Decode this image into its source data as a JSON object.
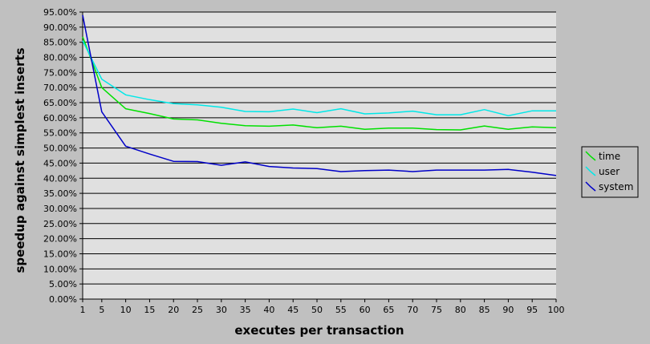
{
  "chart_data": {
    "type": "line",
    "title": "",
    "xlabel": "executes per transaction",
    "ylabel": "speedup against simplest inserts",
    "x": [
      1,
      5,
      10,
      15,
      20,
      25,
      30,
      35,
      40,
      45,
      50,
      55,
      60,
      65,
      70,
      75,
      80,
      85,
      90,
      95,
      100
    ],
    "xticks": [
      "1",
      "5",
      "10",
      "15",
      "20",
      "25",
      "30",
      "35",
      "40",
      "45",
      "50",
      "55",
      "60",
      "65",
      "70",
      "75",
      "80",
      "85",
      "90",
      "95",
      "100"
    ],
    "ylim": [
      0,
      0.95
    ],
    "yticks": [
      "0.00%",
      "5.00%",
      "10.00%",
      "15.00%",
      "20.00%",
      "25.00%",
      "30.00%",
      "35.00%",
      "40.00%",
      "45.00%",
      "50.00%",
      "55.00%",
      "60.00%",
      "65.00%",
      "70.00%",
      "75.00%",
      "80.00%",
      "85.00%",
      "90.00%",
      "95.00%"
    ],
    "grid": true,
    "legend_position": "right",
    "plot_background": "#e0e0e0",
    "background": "#c0c0c0",
    "series": [
      {
        "name": "time",
        "color": "#00e000",
        "values": [
          0.868,
          0.7,
          0.63,
          0.614,
          0.596,
          0.593,
          0.582,
          0.574,
          0.572,
          0.576,
          0.567,
          0.572,
          0.562,
          0.566,
          0.566,
          0.561,
          0.56,
          0.573,
          0.562,
          0.57,
          0.567
        ]
      },
      {
        "name": "user",
        "color": "#00e8e8",
        "values": [
          0.855,
          0.728,
          0.676,
          0.66,
          0.647,
          0.643,
          0.635,
          0.621,
          0.62,
          0.629,
          0.617,
          0.63,
          0.613,
          0.616,
          0.622,
          0.61,
          0.61,
          0.627,
          0.607,
          0.623,
          0.623
        ]
      },
      {
        "name": "system",
        "color": "#0000c8",
        "values": [
          0.94,
          0.62,
          0.506,
          0.48,
          0.456,
          0.455,
          0.443,
          0.454,
          0.439,
          0.434,
          0.432,
          0.422,
          0.425,
          0.427,
          0.422,
          0.427,
          0.427,
          0.427,
          0.429,
          0.42,
          0.409
        ]
      }
    ]
  }
}
